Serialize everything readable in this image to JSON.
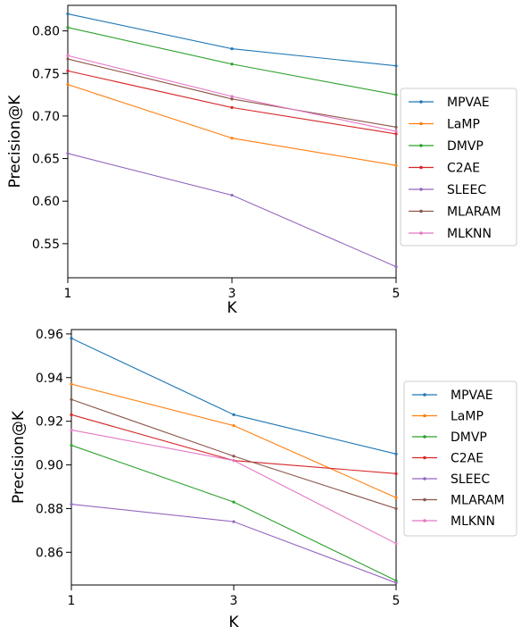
{
  "chart_data": [
    {
      "type": "line",
      "title": "",
      "xlabel": "K",
      "ylabel": "Precision@K",
      "x": [
        1,
        3,
        5
      ],
      "xlim": [
        1,
        5
      ],
      "ylim": [
        0.51,
        0.83
      ],
      "xticks": [
        "1",
        "3",
        "5"
      ],
      "yticks": [
        0.55,
        0.6,
        0.65,
        0.7,
        0.75,
        0.8
      ],
      "ytick_labels": [
        "0.55",
        "0.60",
        "0.65",
        "0.70",
        "0.75",
        "0.80"
      ],
      "grid": false,
      "legend_position": "right",
      "series": [
        {
          "name": "MPVAE",
          "color": "#1f77b4",
          "values": [
            0.82,
            0.779,
            0.759
          ]
        },
        {
          "name": "LaMP",
          "color": "#ff7f0e",
          "values": [
            0.737,
            0.674,
            0.642
          ]
        },
        {
          "name": "DMVP",
          "color": "#2ca02c",
          "values": [
            0.804,
            0.761,
            0.725
          ]
        },
        {
          "name": "C2AE",
          "color": "#d62728",
          "values": [
            0.753,
            0.71,
            0.679
          ]
        },
        {
          "name": "SLEEC",
          "color": "#9467bd",
          "values": [
            0.656,
            0.607,
            0.523
          ]
        },
        {
          "name": "MLARAM",
          "color": "#8c564b",
          "values": [
            0.767,
            0.72,
            0.687
          ]
        },
        {
          "name": "MLKNN",
          "color": "#e377c2",
          "values": [
            0.771,
            0.723,
            0.682
          ]
        }
      ]
    },
    {
      "type": "line",
      "title": "",
      "xlabel": "K",
      "ylabel": "Precision@K",
      "x": [
        1,
        3,
        5
      ],
      "xlim": [
        1,
        5
      ],
      "ylim": [
        0.845,
        0.962
      ],
      "xticks": [
        "1",
        "3",
        "5"
      ],
      "yticks": [
        0.86,
        0.88,
        0.9,
        0.92,
        0.94,
        0.96
      ],
      "ytick_labels": [
        "0.86",
        "0.88",
        "0.90",
        "0.92",
        "0.94",
        "0.96"
      ],
      "grid": false,
      "legend_position": "right",
      "series": [
        {
          "name": "MPVAE",
          "color": "#1f77b4",
          "values": [
            0.958,
            0.923,
            0.905
          ]
        },
        {
          "name": "LaMP",
          "color": "#ff7f0e",
          "values": [
            0.937,
            0.918,
            0.885
          ]
        },
        {
          "name": "DMVP",
          "color": "#2ca02c",
          "values": [
            0.909,
            0.883,
            0.847
          ]
        },
        {
          "name": "C2AE",
          "color": "#d62728",
          "values": [
            0.923,
            0.902,
            0.896
          ]
        },
        {
          "name": "SLEEC",
          "color": "#9467bd",
          "values": [
            0.882,
            0.874,
            0.846
          ]
        },
        {
          "name": "MLARAM",
          "color": "#8c564b",
          "values": [
            0.93,
            0.904,
            0.88
          ]
        },
        {
          "name": "MLKNN",
          "color": "#e377c2",
          "values": [
            0.916,
            0.902,
            0.864
          ]
        }
      ]
    }
  ]
}
